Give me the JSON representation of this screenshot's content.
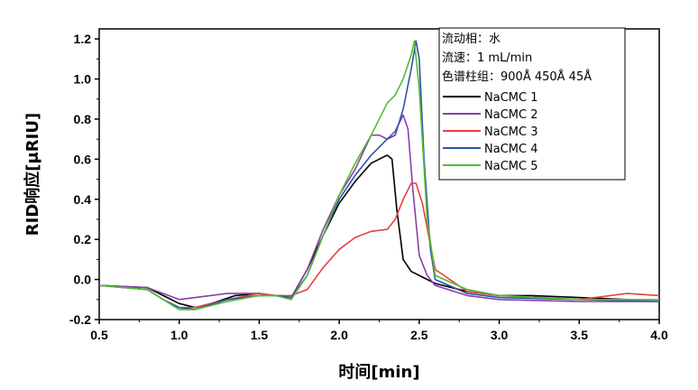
{
  "chart_data": {
    "type": "line",
    "xlabel": "时间[min]",
    "ylabel": "RID响应[μRIU]",
    "xlim": [
      0.5,
      4.0
    ],
    "ylim": [
      -0.2,
      1.25
    ],
    "xticks": [
      "0.5",
      "1.0",
      "1.5",
      "2.0",
      "2.5",
      "3.0",
      "3.5",
      "4.0"
    ],
    "yticks": [
      "-0.2",
      "0.0",
      "0.2",
      "0.4",
      "0.6",
      "0.8",
      "1.0",
      "1.2"
    ],
    "grid": false,
    "legend_position": "top-right",
    "notes": [
      "流动相：水",
      "流速：1 mL/min",
      "色谱柱组：900Å 450Å 45Å"
    ],
    "series": [
      {
        "name": "NaCMC 1",
        "color": "#000000",
        "x": [
          0.5,
          0.8,
          0.9,
          1.0,
          1.1,
          1.2,
          1.35,
          1.5,
          1.6,
          1.7,
          1.8,
          1.9,
          2.0,
          2.1,
          2.2,
          2.25,
          2.3,
          2.33,
          2.36,
          2.4,
          2.45,
          2.5,
          2.6,
          2.8,
          3.0,
          3.2,
          3.5,
          3.8,
          4.0
        ],
        "y": [
          -0.03,
          -0.04,
          -0.08,
          -0.12,
          -0.14,
          -0.12,
          -0.08,
          -0.07,
          -0.08,
          -0.09,
          0.05,
          0.22,
          0.38,
          0.49,
          0.58,
          0.6,
          0.62,
          0.6,
          0.35,
          0.1,
          0.04,
          0.02,
          -0.02,
          -0.06,
          -0.08,
          -0.08,
          -0.09,
          -0.1,
          -0.1
        ]
      },
      {
        "name": "NaCMC 2",
        "color": "#8b3fa8",
        "x": [
          0.5,
          0.8,
          0.9,
          1.0,
          1.1,
          1.3,
          1.5,
          1.6,
          1.7,
          1.8,
          1.9,
          2.0,
          2.1,
          2.2,
          2.25,
          2.3,
          2.35,
          2.4,
          2.43,
          2.46,
          2.5,
          2.55,
          2.6,
          2.8,
          3.0,
          3.5,
          4.0
        ],
        "y": [
          -0.03,
          -0.04,
          -0.07,
          -0.1,
          -0.09,
          -0.07,
          -0.07,
          -0.08,
          -0.09,
          0.05,
          0.25,
          0.42,
          0.55,
          0.72,
          0.72,
          0.7,
          0.74,
          0.82,
          0.75,
          0.45,
          0.12,
          0.02,
          -0.03,
          -0.08,
          -0.1,
          -0.11,
          -0.11
        ]
      },
      {
        "name": "NaCMC 3",
        "color": "#e84040",
        "x": [
          0.5,
          0.8,
          0.9,
          1.0,
          1.1,
          1.3,
          1.5,
          1.6,
          1.7,
          1.8,
          1.9,
          2.0,
          2.1,
          2.2,
          2.3,
          2.35,
          2.4,
          2.45,
          2.48,
          2.52,
          2.6,
          2.8,
          3.0,
          3.5,
          3.8,
          4.0
        ],
        "y": [
          -0.03,
          -0.05,
          -0.1,
          -0.14,
          -0.14,
          -0.1,
          -0.07,
          -0.08,
          -0.08,
          -0.05,
          0.06,
          0.15,
          0.21,
          0.24,
          0.25,
          0.3,
          0.4,
          0.48,
          0.48,
          0.38,
          0.05,
          -0.06,
          -0.08,
          -0.1,
          -0.07,
          -0.08
        ]
      },
      {
        "name": "NaCMC 4",
        "color": "#2c55a8",
        "x": [
          0.5,
          0.8,
          0.9,
          1.0,
          1.1,
          1.3,
          1.5,
          1.6,
          1.7,
          1.8,
          1.9,
          2.0,
          2.1,
          2.2,
          2.3,
          2.35,
          2.4,
          2.45,
          2.48,
          2.5,
          2.53,
          2.57,
          2.6,
          2.8,
          3.0,
          3.5,
          4.0
        ],
        "y": [
          -0.03,
          -0.05,
          -0.1,
          -0.14,
          -0.15,
          -0.1,
          -0.08,
          -0.08,
          -0.09,
          0.02,
          0.22,
          0.4,
          0.52,
          0.62,
          0.7,
          0.72,
          0.85,
          1.05,
          1.19,
          1.1,
          0.6,
          0.15,
          0.0,
          -0.07,
          -0.09,
          -0.1,
          -0.11
        ]
      },
      {
        "name": "NaCMC 5",
        "color": "#55bb33",
        "x": [
          0.5,
          0.8,
          0.9,
          1.0,
          1.1,
          1.3,
          1.5,
          1.6,
          1.7,
          1.8,
          1.9,
          2.0,
          2.1,
          2.2,
          2.3,
          2.35,
          2.4,
          2.45,
          2.47,
          2.5,
          2.55,
          2.6,
          2.8,
          3.0,
          3.5,
          4.0
        ],
        "y": [
          -0.03,
          -0.05,
          -0.1,
          -0.15,
          -0.15,
          -0.11,
          -0.08,
          -0.08,
          -0.1,
          0.02,
          0.22,
          0.42,
          0.58,
          0.72,
          0.88,
          0.92,
          1.0,
          1.12,
          1.19,
          0.95,
          0.3,
          0.02,
          -0.05,
          -0.08,
          -0.1,
          -0.1
        ]
      }
    ]
  }
}
